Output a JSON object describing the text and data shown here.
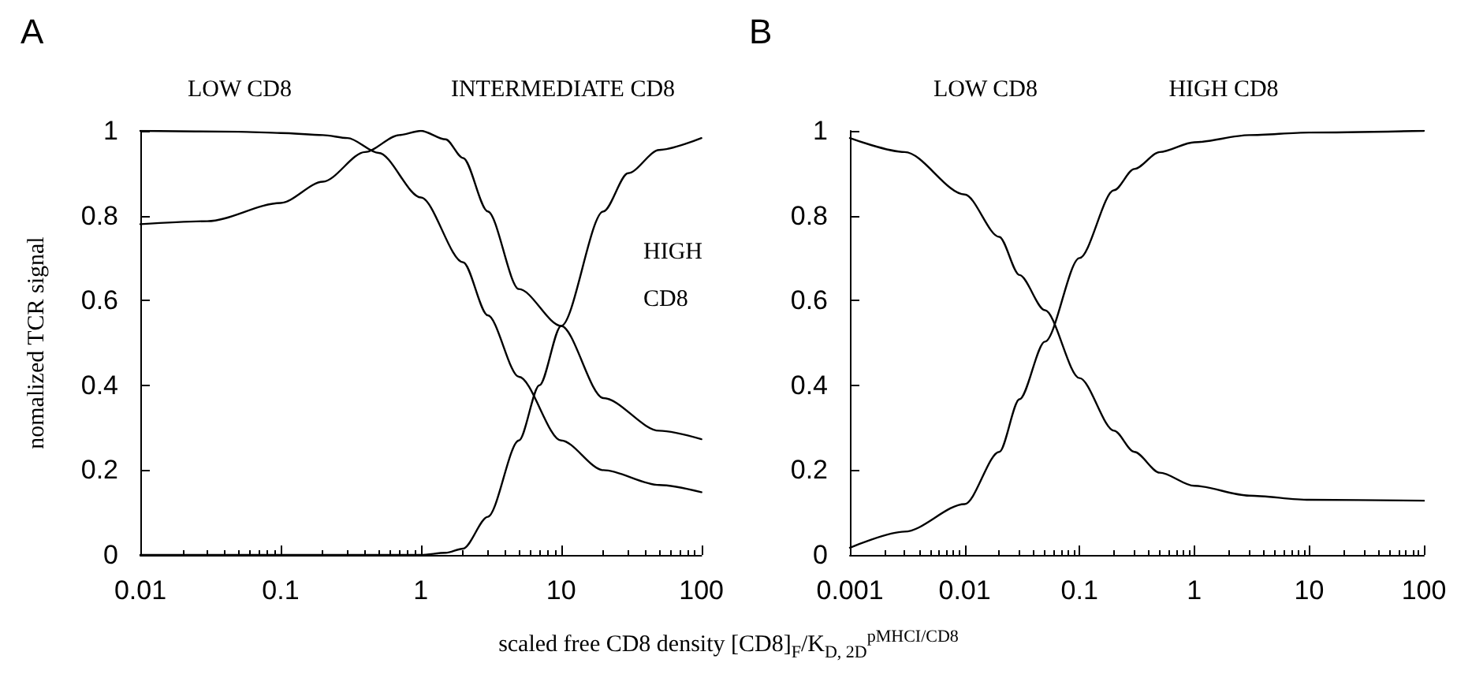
{
  "chart_data": [
    {
      "type": "line",
      "title": "A",
      "xlabel": "scaled free CD8 density [CD8]$_{F}$/K$_{D, 2D}$$^{pMHCI/CD8}$",
      "ylabel": "nomalized TCR signal",
      "log": "x",
      "grid": false,
      "marker": "none",
      "line_style": "solid",
      "xlim": [
        0.01,
        100
      ],
      "xticks": [
        0.01,
        0.1,
        1,
        10,
        100
      ],
      "ylim": [
        0,
        1
      ],
      "yticks": [
        0,
        0.2,
        0.4,
        0.6,
        0.8,
        1
      ],
      "series": [
        {
          "name": "LOW CD8",
          "color": "#000000",
          "x": [
            0.01,
            0.05,
            0.1,
            0.2,
            0.3,
            0.5,
            1,
            2,
            3,
            5,
            10,
            20,
            50,
            100
          ],
          "values": [
            1.0,
            0.998,
            0.995,
            0.99,
            0.983,
            0.948,
            0.843,
            0.69,
            0.565,
            0.42,
            0.27,
            0.2,
            0.165,
            0.148
          ]
        },
        {
          "name": "INTERMEDIATE CD8",
          "color": "#000000",
          "x": [
            0.01,
            0.03,
            0.1,
            0.2,
            0.4,
            0.7,
            1,
            1.5,
            2,
            3,
            5,
            10,
            20,
            50,
            100
          ],
          "values": [
            0.78,
            0.787,
            0.83,
            0.88,
            0.95,
            0.99,
            1.0,
            0.98,
            0.936,
            0.81,
            0.627,
            0.54,
            0.37,
            0.293,
            0.273
          ]
        },
        {
          "name": "HIGH CD8",
          "color": "#000000",
          "x": [
            0.01,
            1,
            1.5,
            2,
            3,
            5,
            7,
            10,
            20,
            30,
            50,
            100
          ],
          "values": [
            0,
            0,
            0.005,
            0.015,
            0.09,
            0.27,
            0.4,
            0.54,
            0.81,
            0.9,
            0.955,
            0.983
          ]
        }
      ]
    },
    {
      "type": "line",
      "title": "B",
      "log": "x",
      "grid": false,
      "marker": "none",
      "line_style": "solid",
      "xlim": [
        0.001,
        100
      ],
      "xticks": [
        0.001,
        0.01,
        0.1,
        1,
        10,
        100
      ],
      "ylim": [
        0,
        1
      ],
      "yticks": [
        0,
        0.2,
        0.4,
        0.6,
        0.8,
        1
      ],
      "series": [
        {
          "name": "LOW CD8",
          "color": "#000000",
          "x": [
            0.001,
            0.003,
            0.01,
            0.02,
            0.03,
            0.05,
            0.1,
            0.2,
            0.3,
            0.5,
            1,
            3,
            10,
            100
          ],
          "values": [
            0.983,
            0.95,
            0.85,
            0.75,
            0.66,
            0.577,
            0.417,
            0.293,
            0.243,
            0.194,
            0.163,
            0.14,
            0.13,
            0.128
          ]
        },
        {
          "name": "HIGH CD8",
          "color": "#000000",
          "x": [
            0.001,
            0.003,
            0.01,
            0.02,
            0.03,
            0.05,
            0.1,
            0.2,
            0.3,
            0.5,
            1,
            3,
            10,
            100
          ],
          "values": [
            0.017,
            0.055,
            0.12,
            0.243,
            0.367,
            0.503,
            0.7,
            0.86,
            0.91,
            0.95,
            0.973,
            0.99,
            0.996,
            1.0
          ]
        }
      ]
    }
  ]
}
